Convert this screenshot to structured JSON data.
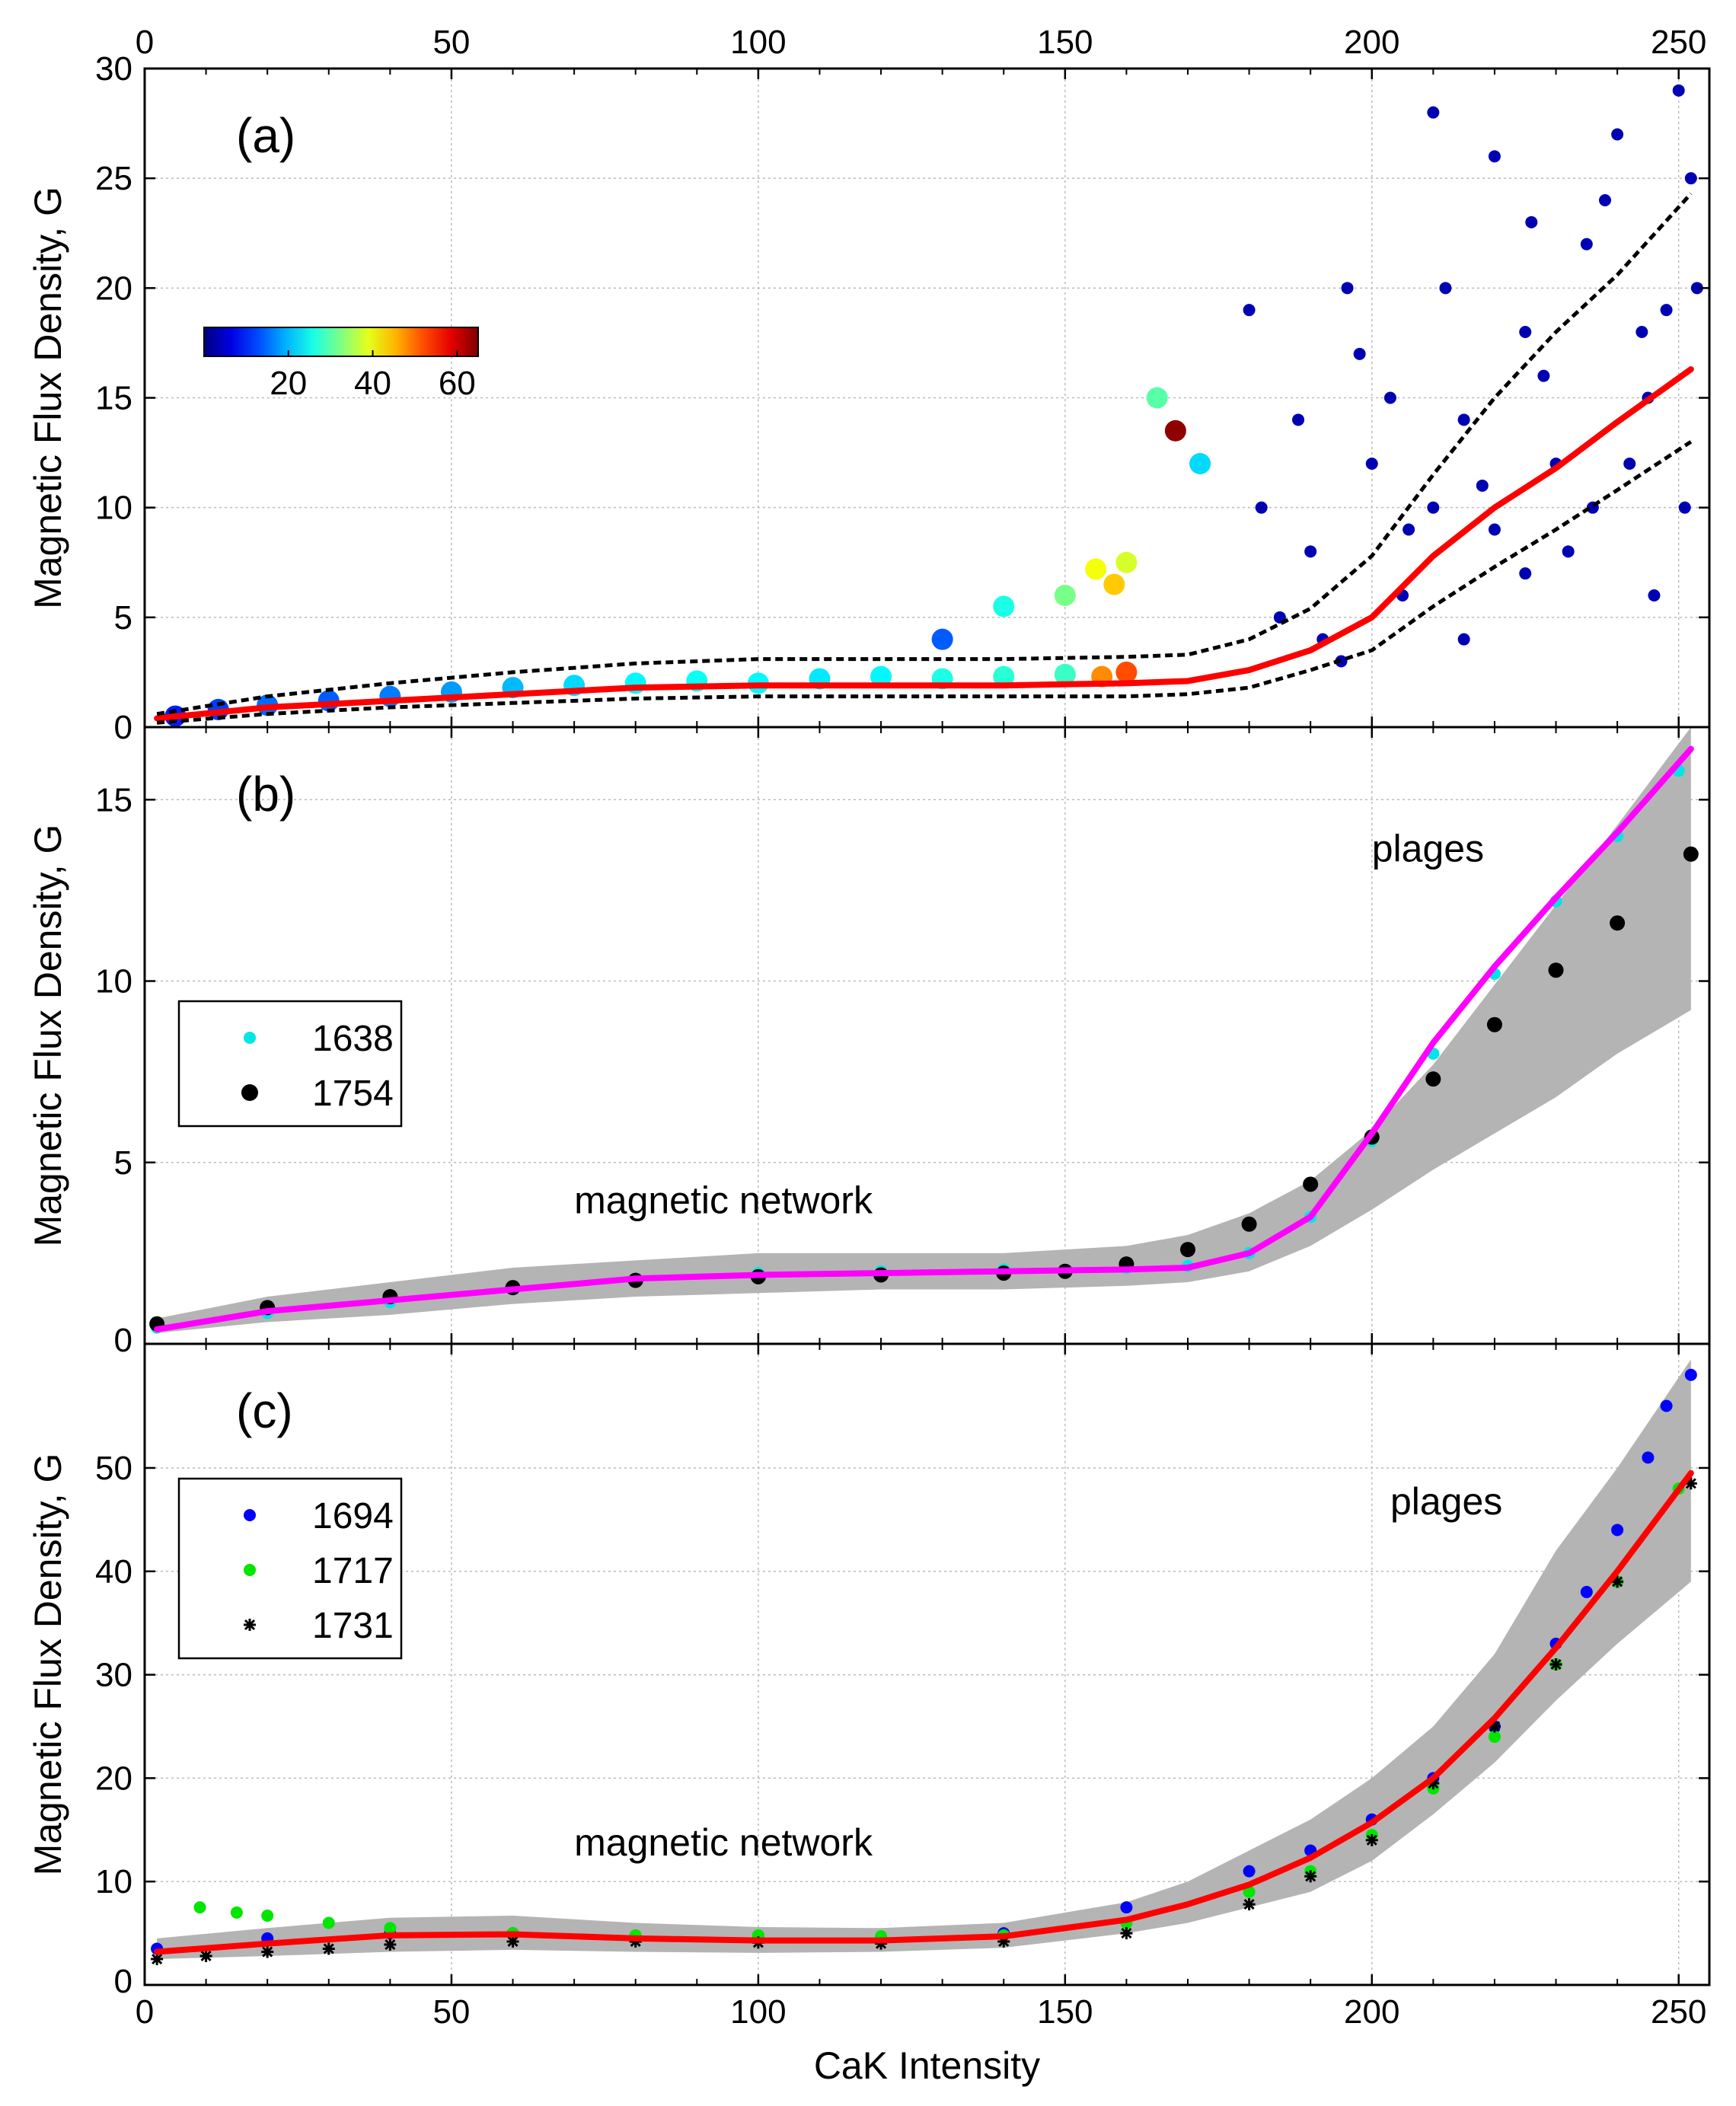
{
  "chart_data": [
    {
      "type": "scatter",
      "panel_label": "(a)",
      "xlabel": "CaK Intensity",
      "ylabel": "Magnetic Flux Density, G",
      "xlim": [
        0,
        255
      ],
      "ylim": [
        0,
        30
      ],
      "xticks": [
        0,
        50,
        100,
        150,
        200,
        250
      ],
      "xtick_labels": [
        "0",
        "50",
        "100",
        "150",
        "200",
        "250"
      ],
      "yticks": [
        0,
        5,
        10,
        15,
        20,
        25,
        30
      ],
      "ytick_labels": [
        "0",
        "5",
        "10",
        "15",
        "20",
        "25",
        "30"
      ],
      "grid": true,
      "colorbar": {
        "ticks": [
          20,
          40,
          60
        ],
        "tick_labels": [
          "20",
          "40",
          "60"
        ],
        "range": [
          0,
          65
        ],
        "colormap": "jet"
      },
      "scatter_density": [
        {
          "x": 5,
          "y": 0.5,
          "c": 10
        },
        {
          "x": 12,
          "y": 0.8,
          "c": 12
        },
        {
          "x": 20,
          "y": 1.0,
          "c": 15
        },
        {
          "x": 30,
          "y": 1.2,
          "c": 14
        },
        {
          "x": 40,
          "y": 1.4,
          "c": 16
        },
        {
          "x": 50,
          "y": 1.6,
          "c": 18
        },
        {
          "x": 60,
          "y": 1.8,
          "c": 20
        },
        {
          "x": 70,
          "y": 1.9,
          "c": 22
        },
        {
          "x": 80,
          "y": 2.0,
          "c": 24
        },
        {
          "x": 90,
          "y": 2.1,
          "c": 25
        },
        {
          "x": 100,
          "y": 2.0,
          "c": 24
        },
        {
          "x": 110,
          "y": 2.2,
          "c": 23
        },
        {
          "x": 120,
          "y": 2.3,
          "c": 24
        },
        {
          "x": 130,
          "y": 2.2,
          "c": 26
        },
        {
          "x": 140,
          "y": 2.3,
          "c": 27
        },
        {
          "x": 150,
          "y": 2.4,
          "c": 28
        },
        {
          "x": 156,
          "y": 2.3,
          "c": 48
        },
        {
          "x": 160,
          "y": 2.5,
          "c": 52
        },
        {
          "x": 150,
          "y": 6.0,
          "c": 32
        },
        {
          "x": 155,
          "y": 7.2,
          "c": 40
        },
        {
          "x": 158,
          "y": 6.5,
          "c": 44
        },
        {
          "x": 160,
          "y": 7.5,
          "c": 38
        },
        {
          "x": 165,
          "y": 15.0,
          "c": 30
        },
        {
          "x": 168,
          "y": 13.5,
          "c": 64
        },
        {
          "x": 172,
          "y": 12.0,
          "c": 22
        },
        {
          "x": 140,
          "y": 5.5,
          "c": 26
        },
        {
          "x": 130,
          "y": 4.0,
          "c": 14
        }
      ],
      "scatter_sparse": [
        [
          185,
          5
        ],
        [
          190,
          8
        ],
        [
          195,
          3
        ],
        [
          200,
          12
        ],
        [
          205,
          6
        ],
        [
          210,
          10
        ],
        [
          215,
          14
        ],
        [
          220,
          9
        ],
        [
          225,
          18
        ],
        [
          230,
          12
        ],
        [
          235,
          22
        ],
        [
          240,
          27
        ],
        [
          245,
          15
        ],
        [
          250,
          29
        ],
        [
          210,
          28
        ],
        [
          212,
          20
        ],
        [
          220,
          26
        ],
        [
          228,
          16
        ],
        [
          238,
          24
        ],
        [
          248,
          19
        ],
        [
          252,
          25
        ],
        [
          218,
          11
        ],
        [
          232,
          8
        ],
        [
          242,
          12
        ],
        [
          198,
          17
        ],
        [
          188,
          14
        ],
        [
          182,
          10
        ],
        [
          192,
          4
        ],
        [
          203,
          15
        ],
        [
          215,
          4
        ],
        [
          225,
          7
        ],
        [
          236,
          10
        ],
        [
          246,
          6
        ],
        [
          253,
          20
        ],
        [
          180,
          19
        ],
        [
          196,
          20
        ],
        [
          206,
          9
        ],
        [
          226,
          23
        ],
        [
          244,
          18
        ],
        [
          251,
          10
        ]
      ],
      "series": [
        {
          "name": "fit",
          "style": "red-solid",
          "x": [
            2,
            20,
            40,
            60,
            80,
            100,
            120,
            140,
            160,
            170,
            180,
            190,
            200,
            210,
            220,
            230,
            240,
            252
          ],
          "y": [
            0.4,
            0.9,
            1.2,
            1.5,
            1.8,
            1.9,
            1.9,
            1.9,
            2.0,
            2.1,
            2.6,
            3.5,
            5.0,
            7.8,
            10.0,
            11.8,
            13.9,
            16.3
          ]
        },
        {
          "name": "upper",
          "style": "black-dashed",
          "x": [
            2,
            20,
            40,
            60,
            80,
            100,
            120,
            140,
            160,
            170,
            180,
            190,
            200,
            210,
            220,
            230,
            240,
            252
          ],
          "y": [
            0.6,
            1.4,
            2.0,
            2.5,
            2.9,
            3.1,
            3.1,
            3.1,
            3.2,
            3.3,
            4.0,
            5.4,
            7.8,
            11.5,
            15.0,
            18.0,
            20.6,
            24.3
          ]
        },
        {
          "name": "lower",
          "style": "black-dashed",
          "x": [
            2,
            20,
            40,
            60,
            80,
            100,
            120,
            140,
            160,
            170,
            180,
            190,
            200,
            210,
            220,
            230,
            240,
            252
          ],
          "y": [
            0.2,
            0.6,
            0.9,
            1.1,
            1.3,
            1.4,
            1.4,
            1.4,
            1.4,
            1.5,
            1.8,
            2.6,
            3.5,
            5.5,
            7.3,
            9.0,
            10.8,
            13.0
          ]
        }
      ]
    },
    {
      "type": "line",
      "panel_label": "(b)",
      "xlabel": "CaK Intensity",
      "ylabel": "Magnetic Flux Density, G",
      "xlim": [
        0,
        255
      ],
      "ylim": [
        0,
        17
      ],
      "yticks": [
        0,
        5,
        10,
        15
      ],
      "ytick_labels": [
        "0",
        "5",
        "10",
        "15"
      ],
      "grid": true,
      "annotations": [
        {
          "text": "magnetic network",
          "x": 70,
          "y": 3.6
        },
        {
          "text": "plages",
          "x": 200,
          "y": 13.3
        }
      ],
      "legend": [
        {
          "label": "1638",
          "marker": "small-dot",
          "color": "#00e5e5"
        },
        {
          "label": "1754",
          "marker": "large-dot",
          "color": "#000000"
        }
      ],
      "band": {
        "x": [
          2,
          20,
          40,
          60,
          80,
          100,
          120,
          140,
          160,
          170,
          180,
          190,
          200,
          210,
          220,
          230,
          240,
          252
        ],
        "upper": [
          0.7,
          1.3,
          1.7,
          2.1,
          2.3,
          2.5,
          2.5,
          2.5,
          2.7,
          3.0,
          3.6,
          4.5,
          5.9,
          7.7,
          9.9,
          12.1,
          14.3,
          17.0
        ],
        "lower": [
          0.3,
          0.6,
          0.8,
          1.1,
          1.3,
          1.4,
          1.5,
          1.5,
          1.6,
          1.7,
          2.0,
          2.7,
          3.7,
          4.8,
          5.8,
          6.8,
          8.0,
          9.2
        ]
      },
      "series": [
        {
          "name": "1638",
          "color": "#00e5e5",
          "x": [
            2,
            20,
            40,
            60,
            80,
            100,
            120,
            140,
            160,
            170,
            180,
            190,
            200,
            210,
            220,
            230,
            240,
            250
          ],
          "y": [
            0.45,
            0.85,
            1.15,
            1.5,
            1.8,
            1.95,
            2.0,
            2.05,
            2.1,
            2.15,
            2.5,
            3.5,
            5.6,
            8.0,
            10.2,
            12.2,
            14.0,
            15.8
          ]
        },
        {
          "name": "1754",
          "color": "#000000",
          "x": [
            2,
            20,
            40,
            60,
            80,
            100,
            120,
            140,
            150,
            160,
            170,
            180,
            190,
            200,
            210,
            220,
            230,
            240,
            252
          ],
          "y": [
            0.55,
            1.0,
            1.3,
            1.55,
            1.75,
            1.85,
            1.9,
            1.95,
            2.0,
            2.2,
            2.6,
            3.3,
            4.4,
            5.7,
            7.3,
            8.8,
            10.3,
            11.6,
            13.5
          ]
        },
        {
          "name": "fit",
          "color": "#ff00ff",
          "x": [
            2,
            20,
            40,
            60,
            80,
            100,
            120,
            140,
            160,
            170,
            180,
            190,
            200,
            210,
            220,
            230,
            240,
            252
          ],
          "y": [
            0.4,
            0.9,
            1.2,
            1.5,
            1.8,
            1.9,
            1.95,
            2.0,
            2.05,
            2.1,
            2.5,
            3.5,
            5.8,
            8.3,
            10.4,
            12.3,
            14.1,
            16.4
          ]
        }
      ]
    },
    {
      "type": "line",
      "panel_label": "(c)",
      "xlabel": "CaK Intensity",
      "ylabel": "Magnetic Flux Density, G",
      "xlim": [
        0,
        255
      ],
      "ylim": [
        0,
        62
      ],
      "xticks": [
        0,
        50,
        100,
        150,
        200,
        250
      ],
      "xtick_labels": [
        "0",
        "50",
        "100",
        "150",
        "200",
        "250"
      ],
      "yticks": [
        0,
        10,
        20,
        30,
        40,
        50
      ],
      "ytick_labels": [
        "0",
        "10",
        "20",
        "30",
        "40",
        "50"
      ],
      "grid": true,
      "annotations": [
        {
          "text": "magnetic network",
          "x": 70,
          "y": 12.5
        },
        {
          "text": "plages",
          "x": 203,
          "y": 45.5
        }
      ],
      "legend": [
        {
          "label": "1694",
          "marker": "dot",
          "color": "#0000ff"
        },
        {
          "label": "1717",
          "marker": "dot",
          "color": "#00e600"
        },
        {
          "label": "1731",
          "marker": "asterisk",
          "color": "#000000"
        }
      ],
      "band": {
        "x": [
          2,
          20,
          40,
          60,
          80,
          100,
          120,
          140,
          160,
          170,
          180,
          190,
          200,
          210,
          220,
          230,
          240,
          252
        ],
        "upper": [
          4.5,
          5.5,
          6.5,
          6.7,
          6.0,
          5.6,
          5.5,
          6.0,
          8.0,
          10.0,
          13.0,
          16.0,
          20.0,
          25.0,
          32.0,
          42.0,
          50.0,
          60.5
        ],
        "lower": [
          2.5,
          2.8,
          3.2,
          3.4,
          3.2,
          3.1,
          3.2,
          3.6,
          5.0,
          6.0,
          7.5,
          9.0,
          12.0,
          16.5,
          21.5,
          27.5,
          33.0,
          39.0
        ]
      },
      "series": [
        {
          "name": "1694",
          "color": "#0000ff",
          "x": [
            2,
            20,
            40,
            60,
            80,
            100,
            120,
            140,
            160,
            180,
            190,
            200,
            210,
            220,
            230,
            235,
            240,
            245,
            248,
            252
          ],
          "y": [
            3.5,
            4.5,
            5.0,
            5.0,
            4.7,
            4.5,
            4.5,
            5.0,
            7.5,
            11.0,
            13.0,
            16.0,
            20.0,
            25.0,
            33.0,
            38.0,
            44.0,
            51.0,
            56.0,
            59.0
          ]
        },
        {
          "name": "1717",
          "color": "#00e600",
          "x": [
            9,
            15,
            20,
            30,
            40,
            60,
            80,
            100,
            120,
            140,
            160,
            180,
            190,
            200,
            210,
            220,
            230,
            240,
            250
          ],
          "y": [
            7.5,
            7.0,
            6.7,
            6.0,
            5.5,
            5.0,
            4.8,
            4.8,
            4.7,
            4.8,
            6.0,
            9.0,
            11.0,
            14.5,
            19.0,
            24.0,
            31.0,
            39.0,
            48.0
          ]
        },
        {
          "name": "1731",
          "color": "#000000",
          "x": [
            2,
            10,
            20,
            30,
            40,
            60,
            80,
            100,
            120,
            140,
            160,
            180,
            190,
            200,
            210,
            220,
            230,
            240,
            252
          ],
          "y": [
            2.5,
            2.8,
            3.2,
            3.5,
            3.9,
            4.2,
            4.2,
            4.1,
            4.0,
            4.2,
            5.0,
            7.8,
            10.5,
            14.0,
            19.5,
            25.0,
            31.0,
            39.0,
            48.5
          ]
        },
        {
          "name": "fit",
          "color": "#ff0000",
          "x": [
            2,
            20,
            40,
            60,
            80,
            100,
            120,
            140,
            160,
            170,
            180,
            190,
            200,
            210,
            220,
            230,
            240,
            252
          ],
          "y": [
            3.2,
            4.0,
            4.8,
            4.9,
            4.5,
            4.3,
            4.3,
            4.7,
            6.3,
            7.8,
            9.7,
            12.3,
            15.7,
            20.0,
            25.8,
            32.6,
            40.0,
            49.5
          ]
        }
      ]
    }
  ]
}
